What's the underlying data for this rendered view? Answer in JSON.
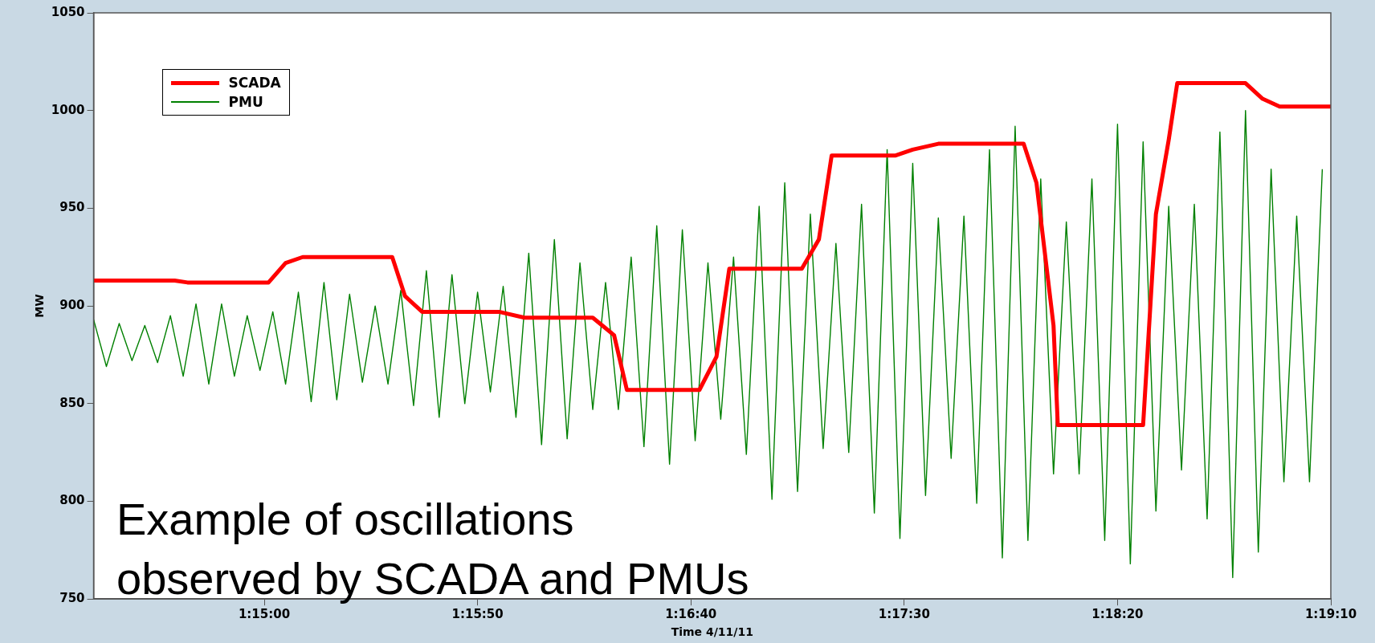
{
  "chart_data": {
    "type": "line",
    "xlabel": "Time 4/11/11",
    "ylabel": "MW",
    "annotations": [
      "Example of oscillations\nobserved by SCADA and PMUs"
    ],
    "legend": "top left",
    "grid": false,
    "marker": "none",
    "line_style": "solid",
    "xlim": [
      1.238889,
      1.319444
    ],
    "xticks": [
      {
        "value": 1.25,
        "label": "1:15:00"
      },
      {
        "value": 1.263889,
        "label": "1:15:50"
      },
      {
        "value": 1.277778,
        "label": "1:16:40"
      },
      {
        "value": 1.291667,
        "label": "1:17:30"
      },
      {
        "value": 1.305556,
        "label": "1:18:20"
      },
      {
        "value": 1.319444,
        "label": "1:19:10"
      }
    ],
    "ylim": [
      750,
      1050
    ],
    "yticks": [
      750,
      800,
      850,
      900,
      950,
      1000,
      1050
    ],
    "series": [
      {
        "name": "SCADA",
        "color": "#ff0000",
        "x": [
          1.238889,
          1.244167,
          1.245,
          1.250278,
          1.251389,
          1.2525,
          1.258333,
          1.259167,
          1.260278,
          1.265278,
          1.266944,
          1.271389,
          1.272778,
          1.273611,
          1.278333,
          1.279444,
          1.280278,
          1.285,
          1.286111,
          1.286944,
          1.291111,
          1.292222,
          1.293889,
          1.299444,
          1.300278,
          1.301389,
          1.301667,
          1.307222,
          1.308056,
          1.308889,
          1.309444,
          1.313889,
          1.315,
          1.316111,
          1.319444
        ],
        "values": [
          913,
          913,
          912,
          912,
          922,
          925,
          925,
          905,
          897,
          897,
          894,
          894,
          885,
          857,
          857,
          874,
          919,
          919,
          934,
          977,
          977,
          980,
          983,
          983,
          963,
          890,
          839,
          839,
          947,
          985,
          1014,
          1014,
          1006,
          1002,
          1002
        ]
      },
      {
        "name": "PMU",
        "color": "#008000",
        "x": [
          1.238889,
          1.239722,
          1.240556,
          1.241389,
          1.242222,
          1.243056,
          1.243889,
          1.244722,
          1.245556,
          1.246389,
          1.247222,
          1.248056,
          1.248889,
          1.249722,
          1.250556,
          1.251389,
          1.252222,
          1.253056,
          1.253889,
          1.254722,
          1.255556,
          1.256389,
          1.257222,
          1.258056,
          1.258889,
          1.259722,
          1.260556,
          1.261389,
          1.262222,
          1.263056,
          1.263889,
          1.264722,
          1.265556,
          1.266389,
          1.267222,
          1.268056,
          1.268889,
          1.269722,
          1.270556,
          1.271389,
          1.272222,
          1.273056,
          1.273889,
          1.274722,
          1.275556,
          1.276389,
          1.277222,
          1.278056,
          1.278889,
          1.279722,
          1.280556,
          1.281389,
          1.282222,
          1.283056,
          1.283889,
          1.284722,
          1.285556,
          1.286389,
          1.287222,
          1.288056,
          1.288889,
          1.289722,
          1.290556,
          1.291389,
          1.292222,
          1.293056,
          1.293889,
          1.294722,
          1.295556,
          1.296389,
          1.297222,
          1.298056,
          1.298889,
          1.299722,
          1.300556,
          1.301389,
          1.302222,
          1.303056,
          1.303889,
          1.304722,
          1.305556,
          1.306389,
          1.307222,
          1.308056,
          1.308889,
          1.309722,
          1.310556,
          1.311389,
          1.312222,
          1.313056,
          1.313889,
          1.314722,
          1.315556,
          1.316389,
          1.317222,
          1.318056,
          1.318889
        ],
        "values": [
          893,
          869,
          891,
          872,
          890,
          871,
          895,
          864,
          901,
          860,
          901,
          864,
          895,
          867,
          897,
          860,
          907,
          851,
          912,
          852,
          906,
          861,
          900,
          860,
          908,
          849,
          918,
          843,
          916,
          850,
          907,
          856,
          910,
          843,
          927,
          829,
          934,
          832,
          922,
          847,
          912,
          847,
          925,
          828,
          941,
          819,
          939,
          831,
          922,
          842,
          925,
          824,
          951,
          801,
          963,
          805,
          947,
          827,
          932,
          825,
          952,
          794,
          980,
          781,
          973,
          803,
          945,
          822,
          946,
          799,
          980,
          771,
          992,
          780,
          965,
          814,
          943,
          814,
          965,
          780,
          993,
          768,
          984,
          795,
          951,
          816,
          952,
          791,
          989,
          761,
          1000,
          774,
          970,
          810,
          946,
          810,
          970
        ]
      }
    ]
  }
}
